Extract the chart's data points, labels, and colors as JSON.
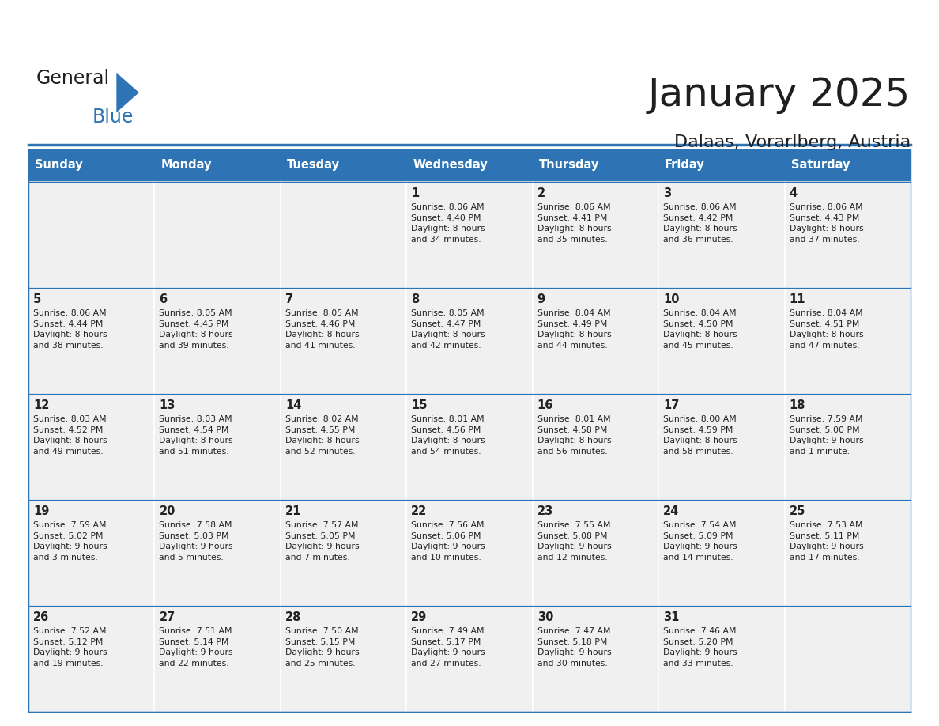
{
  "title": "January 2025",
  "subtitle": "Dalaas, Vorarlberg, Austria",
  "days_of_week": [
    "Sunday",
    "Monday",
    "Tuesday",
    "Wednesday",
    "Thursday",
    "Friday",
    "Saturday"
  ],
  "header_bg": "#2E74B5",
  "header_text": "#FFFFFF",
  "cell_bg_light": "#F0F0F0",
  "cell_bg_white": "#FFFFFF",
  "border_color": "#2E74B5",
  "sep_line_color": "#2E74B5",
  "text_color": "#222222",
  "title_color": "#1F1F1F",
  "logo_color_general": "#1F1F1F",
  "logo_color_blue": "#2E74B5",
  "logo_triangle_color": "#2E74B5",
  "calendar_data": [
    [
      "",
      "",
      "",
      "1\nSunrise: 8:06 AM\nSunset: 4:40 PM\nDaylight: 8 hours\nand 34 minutes.",
      "2\nSunrise: 8:06 AM\nSunset: 4:41 PM\nDaylight: 8 hours\nand 35 minutes.",
      "3\nSunrise: 8:06 AM\nSunset: 4:42 PM\nDaylight: 8 hours\nand 36 minutes.",
      "4\nSunrise: 8:06 AM\nSunset: 4:43 PM\nDaylight: 8 hours\nand 37 minutes."
    ],
    [
      "5\nSunrise: 8:06 AM\nSunset: 4:44 PM\nDaylight: 8 hours\nand 38 minutes.",
      "6\nSunrise: 8:05 AM\nSunset: 4:45 PM\nDaylight: 8 hours\nand 39 minutes.",
      "7\nSunrise: 8:05 AM\nSunset: 4:46 PM\nDaylight: 8 hours\nand 41 minutes.",
      "8\nSunrise: 8:05 AM\nSunset: 4:47 PM\nDaylight: 8 hours\nand 42 minutes.",
      "9\nSunrise: 8:04 AM\nSunset: 4:49 PM\nDaylight: 8 hours\nand 44 minutes.",
      "10\nSunrise: 8:04 AM\nSunset: 4:50 PM\nDaylight: 8 hours\nand 45 minutes.",
      "11\nSunrise: 8:04 AM\nSunset: 4:51 PM\nDaylight: 8 hours\nand 47 minutes."
    ],
    [
      "12\nSunrise: 8:03 AM\nSunset: 4:52 PM\nDaylight: 8 hours\nand 49 minutes.",
      "13\nSunrise: 8:03 AM\nSunset: 4:54 PM\nDaylight: 8 hours\nand 51 minutes.",
      "14\nSunrise: 8:02 AM\nSunset: 4:55 PM\nDaylight: 8 hours\nand 52 minutes.",
      "15\nSunrise: 8:01 AM\nSunset: 4:56 PM\nDaylight: 8 hours\nand 54 minutes.",
      "16\nSunrise: 8:01 AM\nSunset: 4:58 PM\nDaylight: 8 hours\nand 56 minutes.",
      "17\nSunrise: 8:00 AM\nSunset: 4:59 PM\nDaylight: 8 hours\nand 58 minutes.",
      "18\nSunrise: 7:59 AM\nSunset: 5:00 PM\nDaylight: 9 hours\nand 1 minute."
    ],
    [
      "19\nSunrise: 7:59 AM\nSunset: 5:02 PM\nDaylight: 9 hours\nand 3 minutes.",
      "20\nSunrise: 7:58 AM\nSunset: 5:03 PM\nDaylight: 9 hours\nand 5 minutes.",
      "21\nSunrise: 7:57 AM\nSunset: 5:05 PM\nDaylight: 9 hours\nand 7 minutes.",
      "22\nSunrise: 7:56 AM\nSunset: 5:06 PM\nDaylight: 9 hours\nand 10 minutes.",
      "23\nSunrise: 7:55 AM\nSunset: 5:08 PM\nDaylight: 9 hours\nand 12 minutes.",
      "24\nSunrise: 7:54 AM\nSunset: 5:09 PM\nDaylight: 9 hours\nand 14 minutes.",
      "25\nSunrise: 7:53 AM\nSunset: 5:11 PM\nDaylight: 9 hours\nand 17 minutes."
    ],
    [
      "26\nSunrise: 7:52 AM\nSunset: 5:12 PM\nDaylight: 9 hours\nand 19 minutes.",
      "27\nSunrise: 7:51 AM\nSunset: 5:14 PM\nDaylight: 9 hours\nand 22 minutes.",
      "28\nSunrise: 7:50 AM\nSunset: 5:15 PM\nDaylight: 9 hours\nand 25 minutes.",
      "29\nSunrise: 7:49 AM\nSunset: 5:17 PM\nDaylight: 9 hours\nand 27 minutes.",
      "30\nSunrise: 7:47 AM\nSunset: 5:18 PM\nDaylight: 9 hours\nand 30 minutes.",
      "31\nSunrise: 7:46 AM\nSunset: 5:20 PM\nDaylight: 9 hours\nand 33 minutes.",
      ""
    ]
  ]
}
